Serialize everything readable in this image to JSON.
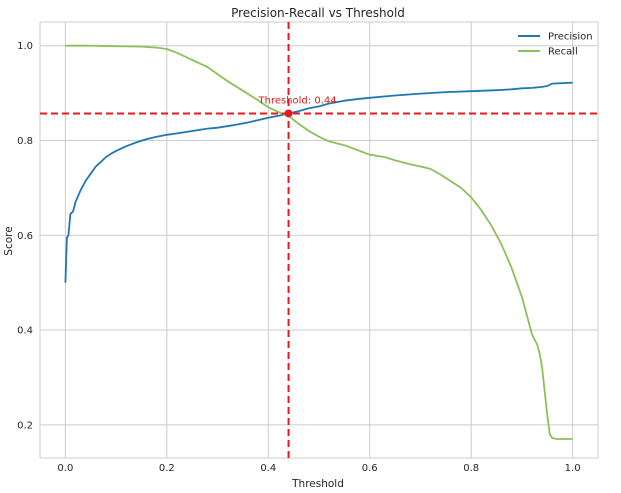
{
  "chart_data": {
    "type": "line",
    "title": "Precision-Recall vs Threshold",
    "xlabel": "Threshold",
    "ylabel": "Score",
    "xlim": [
      -0.05,
      1.05
    ],
    "ylim": [
      0.13,
      1.05
    ],
    "x_ticks": [
      0.0,
      0.2,
      0.4,
      0.6,
      0.8,
      1.0
    ],
    "x_tick_labels": [
      "0.0",
      "0.2",
      "0.4",
      "0.6",
      "0.8",
      "1.0"
    ],
    "y_ticks": [
      0.2,
      0.4,
      0.6,
      0.8,
      1.0
    ],
    "y_tick_labels": [
      "0.2",
      "0.4",
      "0.6",
      "0.8",
      "1.0"
    ],
    "grid": true,
    "legend_position": "top-right",
    "series": [
      {
        "name": "Precision",
        "color": "#1f77b4",
        "x": [
          0.0,
          0.003,
          0.006,
          0.01,
          0.015,
          0.02,
          0.03,
          0.04,
          0.05,
          0.06,
          0.07,
          0.08,
          0.09,
          0.1,
          0.12,
          0.14,
          0.16,
          0.18,
          0.2,
          0.22,
          0.25,
          0.28,
          0.3,
          0.33,
          0.36,
          0.38,
          0.4,
          0.42,
          0.44,
          0.46,
          0.48,
          0.5,
          0.52,
          0.55,
          0.58,
          0.6,
          0.65,
          0.7,
          0.75,
          0.8,
          0.85,
          0.88,
          0.9,
          0.92,
          0.94,
          0.95,
          0.96,
          0.98,
          1.0
        ],
        "y": [
          0.5,
          0.595,
          0.6,
          0.645,
          0.65,
          0.67,
          0.695,
          0.715,
          0.73,
          0.745,
          0.755,
          0.765,
          0.772,
          0.778,
          0.788,
          0.796,
          0.803,
          0.808,
          0.812,
          0.815,
          0.82,
          0.825,
          0.827,
          0.832,
          0.838,
          0.843,
          0.848,
          0.852,
          0.857,
          0.862,
          0.868,
          0.872,
          0.878,
          0.884,
          0.888,
          0.89,
          0.895,
          0.899,
          0.902,
          0.904,
          0.906,
          0.908,
          0.91,
          0.911,
          0.913,
          0.915,
          0.92,
          0.921,
          0.922
        ]
      },
      {
        "name": "Recall",
        "color": "#8cc15a",
        "x": [
          0.0,
          0.05,
          0.1,
          0.15,
          0.18,
          0.2,
          0.22,
          0.25,
          0.28,
          0.3,
          0.32,
          0.35,
          0.38,
          0.4,
          0.42,
          0.44,
          0.46,
          0.48,
          0.5,
          0.52,
          0.55,
          0.58,
          0.6,
          0.63,
          0.65,
          0.68,
          0.7,
          0.72,
          0.74,
          0.76,
          0.78,
          0.8,
          0.82,
          0.84,
          0.86,
          0.88,
          0.9,
          0.91,
          0.92,
          0.93,
          0.935,
          0.94,
          0.945,
          0.95,
          0.955,
          0.96,
          0.97,
          0.98,
          1.0
        ],
        "y": [
          1.0,
          1.0,
          0.999,
          0.998,
          0.996,
          0.993,
          0.985,
          0.97,
          0.955,
          0.94,
          0.925,
          0.905,
          0.885,
          0.87,
          0.86,
          0.852,
          0.835,
          0.82,
          0.808,
          0.798,
          0.79,
          0.778,
          0.77,
          0.765,
          0.758,
          0.75,
          0.745,
          0.74,
          0.728,
          0.714,
          0.7,
          0.68,
          0.653,
          0.62,
          0.58,
          0.53,
          0.47,
          0.43,
          0.39,
          0.37,
          0.35,
          0.32,
          0.27,
          0.22,
          0.18,
          0.172,
          0.17,
          0.17,
          0.17
        ]
      }
    ],
    "reference_lines": [
      {
        "orientation": "vertical",
        "value": 0.44,
        "color": "#e41a1c"
      },
      {
        "orientation": "horizontal",
        "value": 0.857,
        "color": "#e41a1c"
      }
    ],
    "annotations": [
      {
        "text": "Threshold: 0.44",
        "x": 0.44,
        "y": 0.857,
        "color": "#e41a1c"
      }
    ]
  }
}
